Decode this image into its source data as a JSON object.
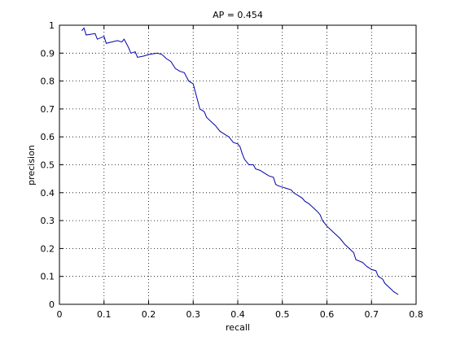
{
  "chart_data": {
    "type": "line",
    "title": "AP = 0.454",
    "x_label": "recall",
    "y_label": "precision",
    "x": [
      0.05,
      0.055,
      0.06,
      0.08,
      0.085,
      0.1,
      0.105,
      0.13,
      0.14,
      0.145,
      0.15,
      0.155,
      0.16,
      0.17,
      0.175,
      0.19,
      0.2,
      0.22,
      0.23,
      0.24,
      0.25,
      0.26,
      0.27,
      0.28,
      0.285,
      0.29,
      0.3,
      0.305,
      0.31,
      0.315,
      0.325,
      0.33,
      0.34,
      0.35,
      0.36,
      0.37,
      0.38,
      0.39,
      0.4,
      0.405,
      0.41,
      0.415,
      0.425,
      0.435,
      0.44,
      0.45,
      0.46,
      0.47,
      0.48,
      0.485,
      0.49,
      0.5,
      0.51,
      0.52,
      0.525,
      0.535,
      0.545,
      0.55,
      0.56,
      0.57,
      0.58,
      0.585,
      0.59,
      0.6,
      0.61,
      0.62,
      0.63,
      0.64,
      0.65,
      0.66,
      0.665,
      0.68,
      0.69,
      0.7,
      0.71,
      0.715,
      0.725,
      0.73,
      0.74,
      0.75,
      0.76
    ],
    "values": [
      0.98,
      0.99,
      0.965,
      0.97,
      0.95,
      0.96,
      0.935,
      0.945,
      0.94,
      0.95,
      0.935,
      0.92,
      0.9,
      0.905,
      0.885,
      0.89,
      0.895,
      0.9,
      0.895,
      0.88,
      0.87,
      0.845,
      0.835,
      0.83,
      0.815,
      0.8,
      0.79,
      0.76,
      0.73,
      0.7,
      0.69,
      0.67,
      0.655,
      0.64,
      0.62,
      0.61,
      0.6,
      0.58,
      0.575,
      0.565,
      0.54,
      0.52,
      0.5,
      0.5,
      0.485,
      0.48,
      0.47,
      0.46,
      0.455,
      0.43,
      0.425,
      0.42,
      0.415,
      0.41,
      0.4,
      0.39,
      0.38,
      0.37,
      0.36,
      0.345,
      0.33,
      0.32,
      0.3,
      0.28,
      0.265,
      0.25,
      0.235,
      0.215,
      0.2,
      0.185,
      0.16,
      0.15,
      0.135,
      0.125,
      0.12,
      0.1,
      0.09,
      0.075,
      0.06,
      0.045,
      0.035
    ],
    "color": "#0000aa",
    "xlim": [
      0,
      0.8
    ],
    "xticks": [
      0,
      0.1,
      0.2,
      0.3,
      0.4,
      0.5,
      0.6,
      0.7,
      0.8
    ],
    "ylim": [
      0,
      1
    ],
    "yticks": [
      0,
      0.1,
      0.2,
      0.3,
      0.4,
      0.5,
      0.6,
      0.7,
      0.8,
      0.9,
      1
    ],
    "grid": true
  }
}
